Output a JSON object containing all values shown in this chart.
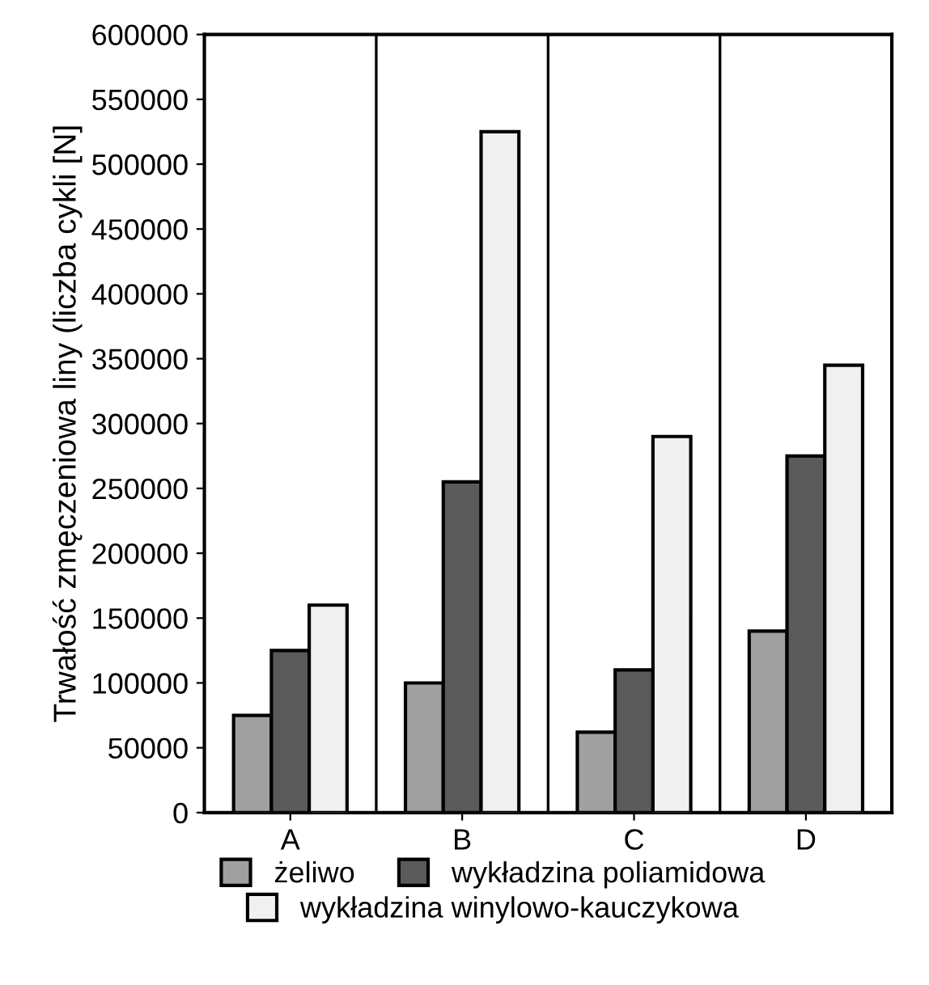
{
  "chart_data": {
    "type": "bar",
    "ylabel": "Trwałość zmęczeniowa liny (liczba cykli [N]",
    "categories": [
      "A",
      "B",
      "C",
      "D"
    ],
    "series": [
      {
        "name": "żeliwo",
        "color": "#a0a0a0",
        "values": [
          75000,
          100000,
          62000,
          140000
        ]
      },
      {
        "name": "wykładzina poliamidowa",
        "color": "#5a5a5a",
        "values": [
          125000,
          255000,
          110000,
          275000
        ]
      },
      {
        "name": "wykładzina winylowo-kauczykowa",
        "color": "#f0f0f0",
        "values": [
          160000,
          525000,
          290000,
          345000
        ]
      }
    ],
    "ylim": [
      0,
      600000
    ],
    "yticks": [
      0,
      50000,
      100000,
      150000,
      200000,
      250000,
      300000,
      350000,
      400000,
      450000,
      500000,
      550000,
      600000
    ],
    "grid": "x",
    "legend": "bottom"
  }
}
